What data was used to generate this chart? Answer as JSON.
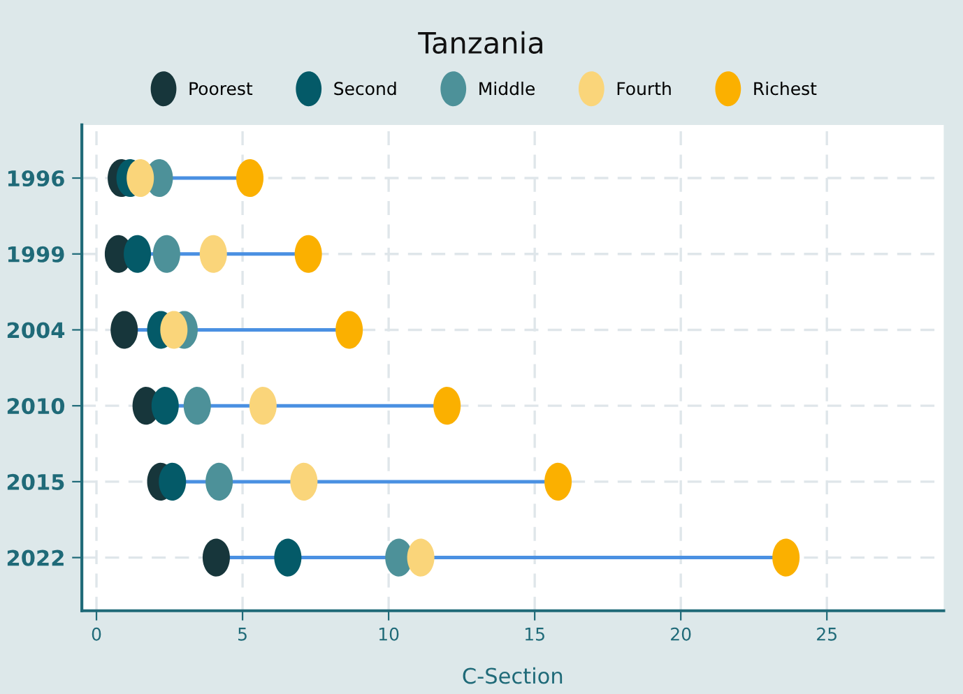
{
  "chart_data": {
    "type": "scatter",
    "title": "Tanzania",
    "xlabel": "C-Section",
    "orientation": "horizontal",
    "categories": [
      "1996",
      "1999",
      "2004",
      "2010",
      "2015",
      "2022"
    ],
    "series": [
      {
        "name": "Poorest",
        "color": "#17363b",
        "values": [
          0.85,
          0.75,
          0.95,
          1.7,
          2.2,
          4.1
        ]
      },
      {
        "name": "Second",
        "color": "#045a68",
        "values": [
          1.15,
          1.4,
          2.2,
          2.35,
          2.6,
          6.55
        ]
      },
      {
        "name": "Middle",
        "color": "#4d9199",
        "values": [
          2.15,
          2.4,
          3.0,
          3.45,
          4.2,
          10.35
        ]
      },
      {
        "name": "Fourth",
        "color": "#fad57a",
        "values": [
          1.5,
          4.0,
          2.65,
          5.7,
          7.1,
          11.1
        ]
      },
      {
        "name": "Richest",
        "color": "#fbb000",
        "values": [
          5.25,
          7.25,
          8.65,
          12.0,
          15.8,
          23.6
        ]
      }
    ],
    "xlim": [
      -0.5,
      29
    ],
    "xticks": [
      0,
      5,
      10,
      15,
      20,
      25
    ],
    "grid": true,
    "legend": "top",
    "marker": "circle"
  }
}
